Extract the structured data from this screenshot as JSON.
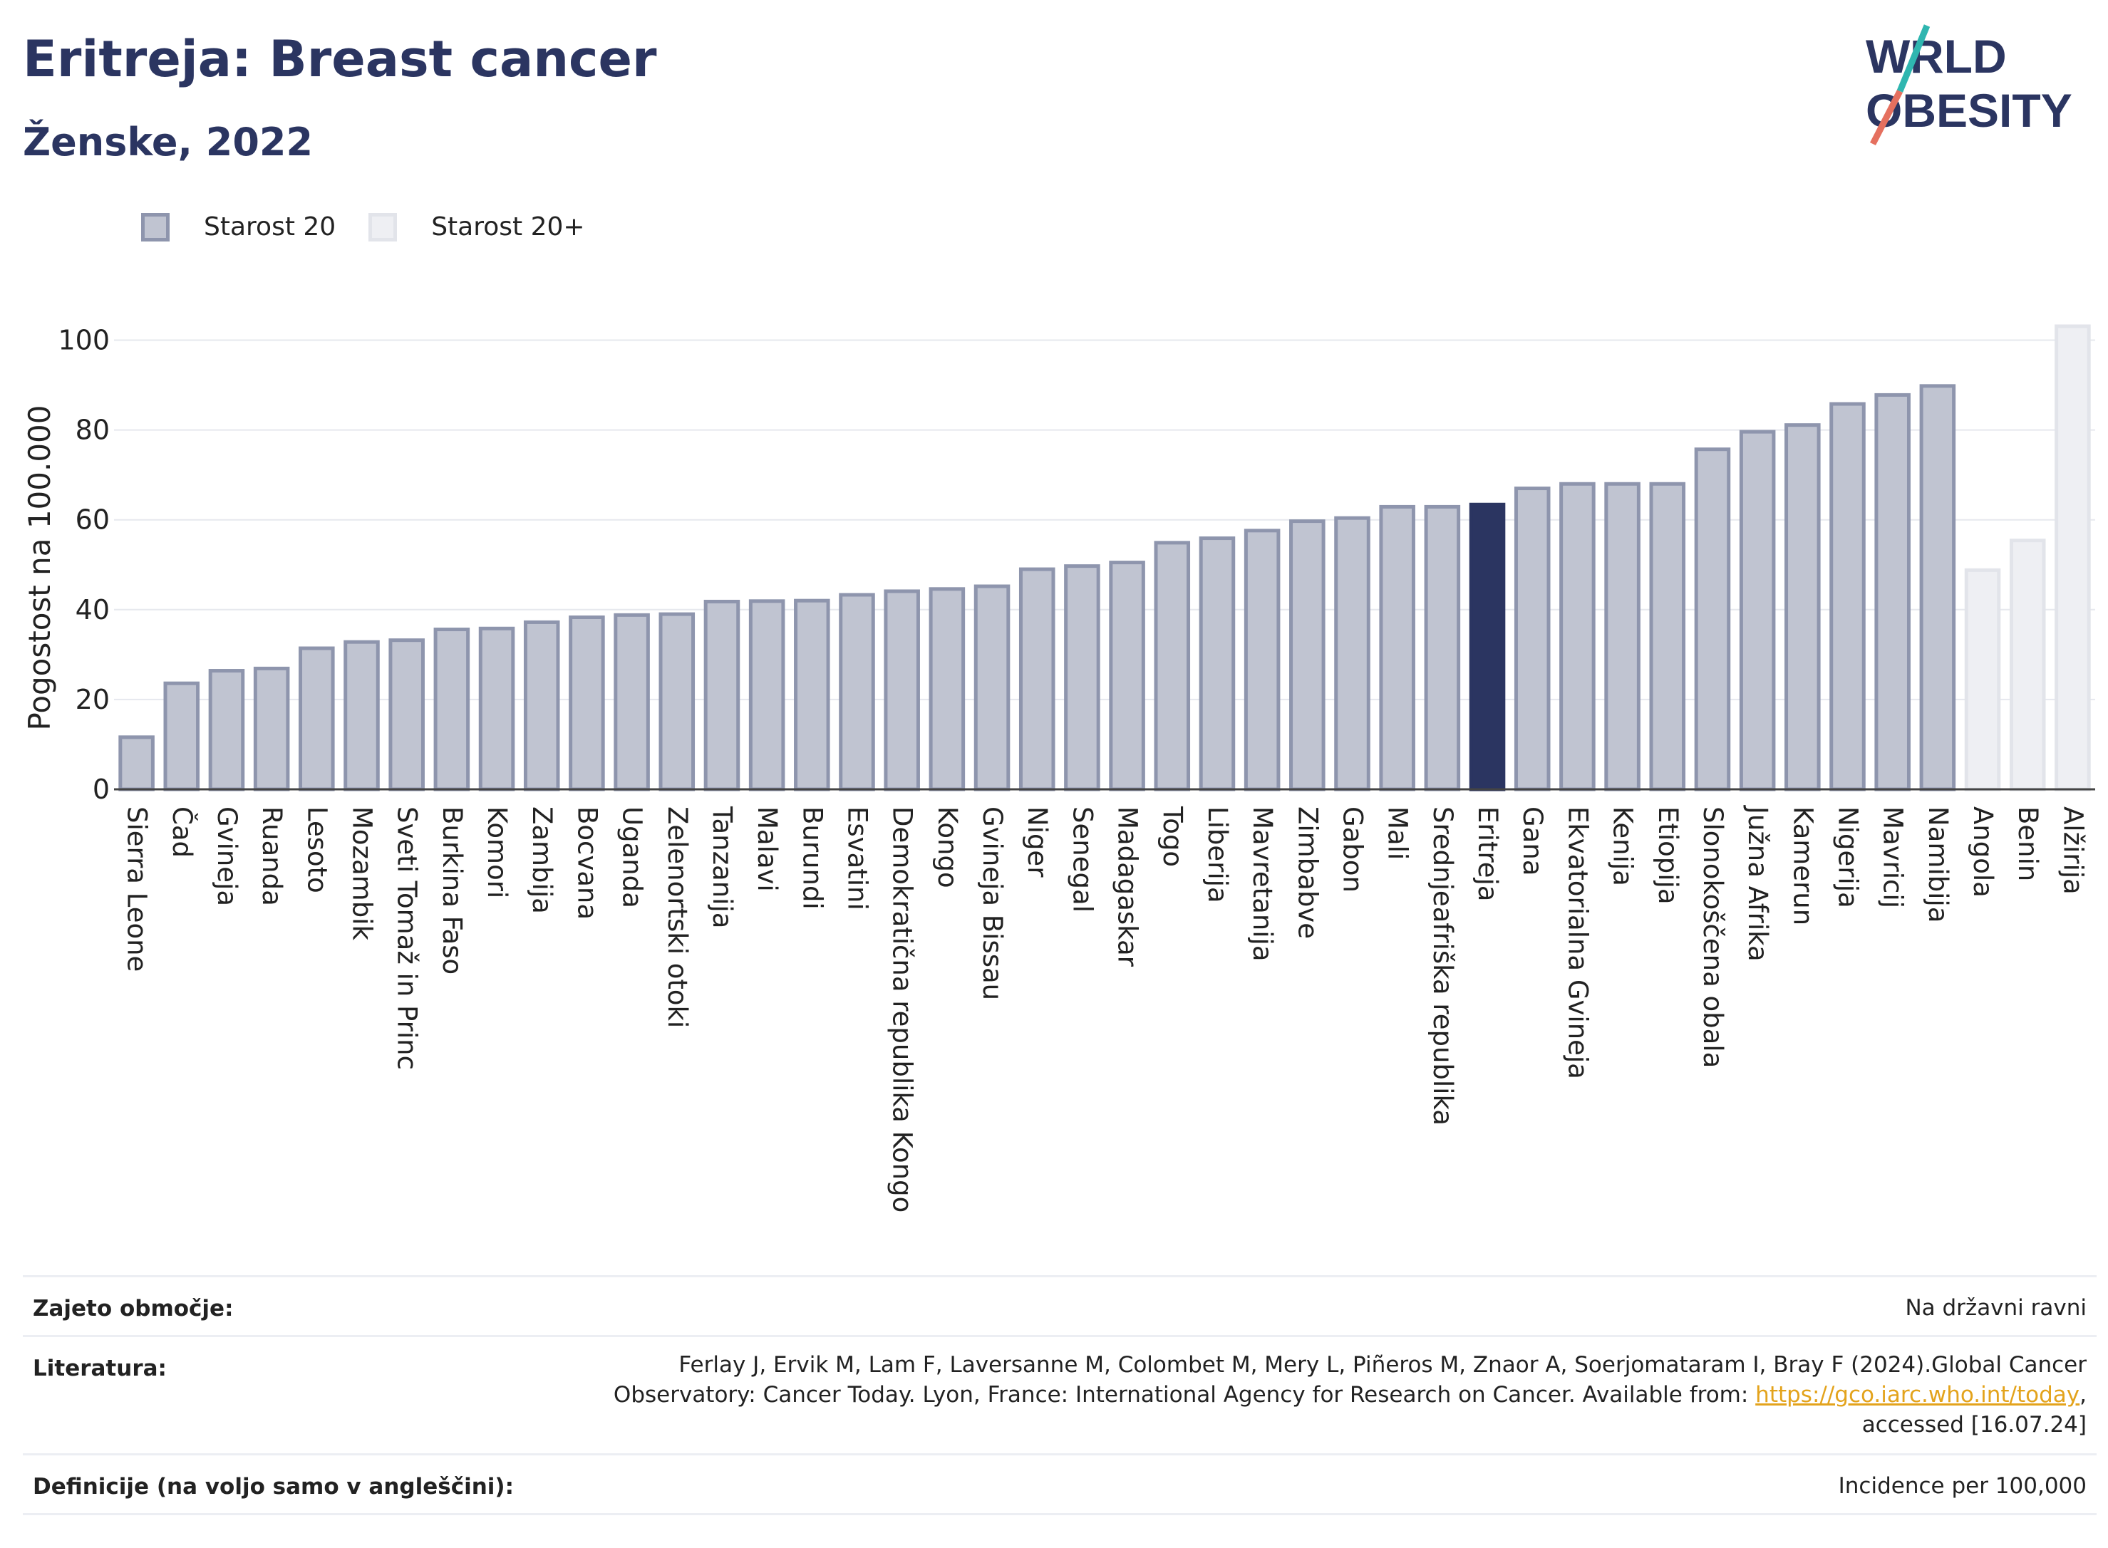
{
  "header": {
    "title": "Eritreja: Breast cancer",
    "subtitle": "Ženske, 2022",
    "logo_text": [
      "WORLD",
      "OBESITY"
    ]
  },
  "legend": {
    "items": [
      {
        "label": "Starost 20",
        "color": "#c0c4d1"
      },
      {
        "label": "Starost 20+",
        "color": "#eeeff3"
      }
    ]
  },
  "chart_data": {
    "type": "bar",
    "ylabel": "Pogostost na 100.000",
    "ylim": [
      0,
      105
    ],
    "yticks": [
      0,
      20,
      40,
      60,
      80,
      100
    ],
    "grid": true,
    "highlight": "Eritreja",
    "colors": {
      "age20": "#c0c4d1",
      "age20_border": "#8e95ad",
      "age20plus": "#eeeff3",
      "age20plus_border": "#e2e4ea",
      "highlight": "#2b3561"
    },
    "categories": [
      "Sierra Leone",
      "Čad",
      "Gvineja",
      "Ruanda",
      "Lesoto",
      "Mozambik",
      "Sveti Tomaž in Princ",
      "Burkina Faso",
      "Komori",
      "Zambija",
      "Bocvana",
      "Uganda",
      "Zelenortski otoki",
      "Tanzanija",
      "Malavi",
      "Burundi",
      "Esvatini",
      "Demokratična republika Kongo",
      "Kongo",
      "Gvineja Bissau",
      "Niger",
      "Senegal",
      "Madagaskar",
      "Togo",
      "Liberija",
      "Mavretanija",
      "Zimbabve",
      "Gabon",
      "Mali",
      "Srednjeafriška republika",
      "Eritreja",
      "Gana",
      "Ekvatorialna Gvineja",
      "Kenija",
      "Etiopija",
      "Slonokoščena obala",
      "Južna Afrika",
      "Kamerun",
      "Nigerija",
      "Mavricij",
      "Namibija",
      "Angola",
      "Benin",
      "Alžirija"
    ],
    "values": [
      12.0,
      24.0,
      26.8,
      27.3,
      31.8,
      33.2,
      33.6,
      36.0,
      36.2,
      37.6,
      38.7,
      39.2,
      39.4,
      42.2,
      42.3,
      42.4,
      43.7,
      44.5,
      45.0,
      45.6,
      49.4,
      50.1,
      50.9,
      55.3,
      56.3,
      58.0,
      60.1,
      60.8,
      63.3,
      63.3,
      63.8,
      67.4,
      68.4,
      68.4,
      68.4,
      76.1,
      80.0,
      81.5,
      86.2,
      88.2,
      90.2,
      49.2,
      55.8,
      103.5
    ],
    "series_group": [
      "20",
      "20",
      "20",
      "20",
      "20",
      "20",
      "20",
      "20",
      "20",
      "20",
      "20",
      "20",
      "20",
      "20",
      "20",
      "20",
      "20",
      "20",
      "20",
      "20",
      "20",
      "20",
      "20",
      "20",
      "20",
      "20",
      "20",
      "20",
      "20",
      "20",
      "20",
      "20",
      "20",
      "20",
      "20",
      "20",
      "20",
      "20",
      "20",
      "20",
      "20",
      "20+",
      "20+",
      "20+"
    ]
  },
  "info": {
    "coverage_label": "Zajeto območje:",
    "coverage_value": "Na državni ravni",
    "references_label": "Literatura:",
    "references_line1": "Ferlay J, Ervik M, Lam F, Laversanne M, Colombet M, Mery L, Piñeros M, Znaor A, Soerjomataram I, Bray F (2024).Global Cancer",
    "references_line2_pre": "Observatory: Cancer Today. Lyon, France: International Agency for Research on Cancer. Available from: ",
    "references_link": "https://gco.iarc.who.int/today",
    "references_line2_post": ",",
    "references_line3": "accessed [16.07.24]",
    "definitions_label": "Definicije (na voljo samo v angleščini):",
    "definitions_value": "Incidence per 100,000"
  }
}
